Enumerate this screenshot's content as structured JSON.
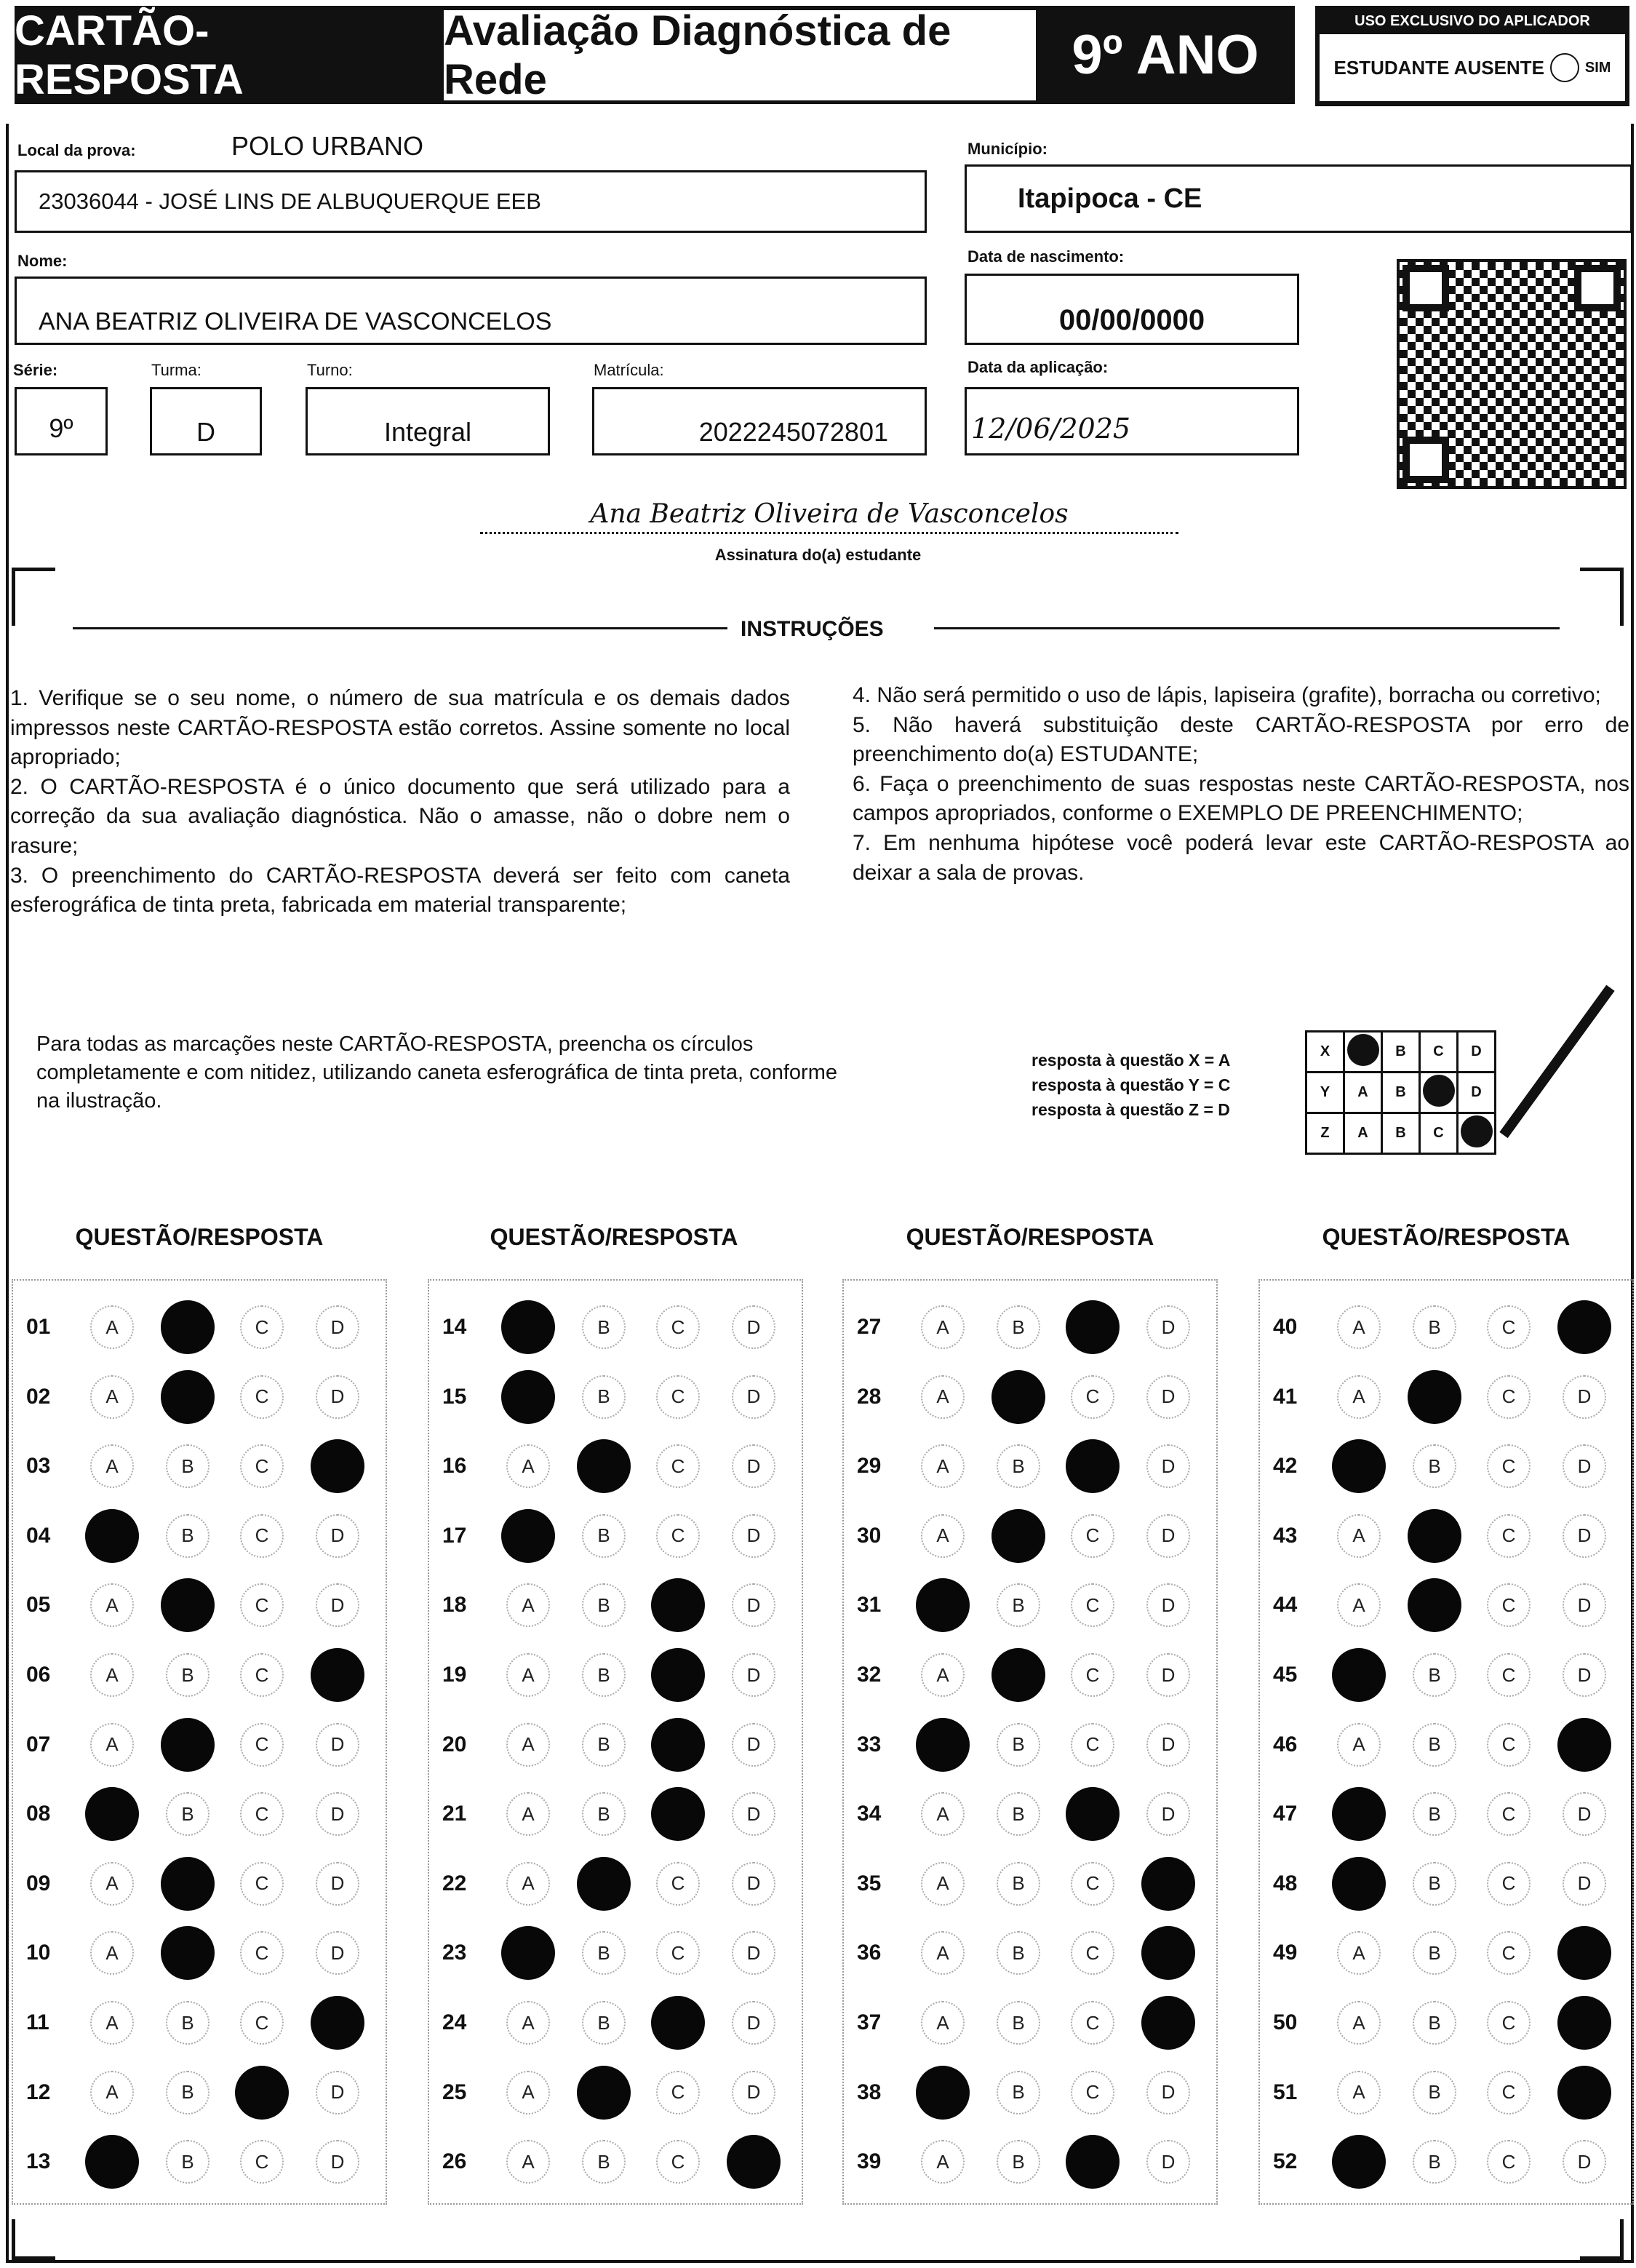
{
  "header": {
    "card_title": "CARTÃO-RESPOSTA",
    "exam_title": "Avaliação Diagnóstica de Rede",
    "grade": "9º ANO",
    "applicator_title": "USO EXCLUSIVO DO APLICADOR",
    "absent_label": "ESTUDANTE AUSENTE",
    "absent_option": "SIM"
  },
  "fields": {
    "local_label": "Local da prova:",
    "local_value": "POLO URBANO",
    "school": "23036044 - JOSÉ LINS DE ALBUQUERQUE EEB",
    "municipio_label": "Município:",
    "municipio": "Itapipoca - CE",
    "nome_label": "Nome:",
    "nome": "ANA BEATRIZ OLIVEIRA DE VASCONCELOS",
    "nasc_label": "Data de nascimento:",
    "nasc": "00/00/0000",
    "serie_label": "Série:",
    "serie": "9º",
    "turma_label": "Turma:",
    "turma": "D",
    "turno_label": "Turno:",
    "turno": "Integral",
    "matricula_label": "Matrícula:",
    "matricula": "2022245072801",
    "aplic_label": "Data da aplicação:",
    "aplic": "12/06/2025"
  },
  "signature": {
    "text": "Ana Beatriz Oliveira de Vasconcelos",
    "label": "Assinatura do(a) estudante"
  },
  "instructions": {
    "title": "INSTRUÇÕES",
    "left": "1. Verifique se o seu nome, o número de sua matrícula e os demais dados impressos neste CARTÃO-RESPOSTA estão corretos. Assine somente no local apropriado;\n2. O CARTÃO-RESPOSTA é o único documento que será utilizado para a correção da sua avaliação diagnóstica. Não o amasse, não o dobre nem o rasure;\n3. O preenchimento do CARTÃO-RESPOSTA deverá ser feito com caneta esferográfica de tinta preta, fabricada em material transparente;",
    "right": "4. Não será permitido o uso de lápis, lapiseira (grafite), borracha ou corretivo;\n5. Não haverá substituição deste CARTÃO-RESPOSTA por erro de preenchimento do(a) ESTUDANTE;\n6. Faça o preenchimento de suas respostas neste CARTÃO-RESPOSTA, nos campos apropriados, conforme o EXEMPLO DE PREENCHIMENTO;\n7. Em nenhuma hipótese você poderá levar este CARTÃO-RESPOSTA ao deixar a sala de provas."
  },
  "fill_note": "Para todas as marcações neste CARTÃO-RESPOSTA, preencha os círculos completamente e com nitidez, utilizando caneta esferográfica de tinta preta, conforme na ilustração.",
  "example": {
    "lines": [
      "resposta à questão X = A",
      "resposta à questão Y = C",
      "resposta à questão Z = D"
    ],
    "rows": [
      {
        "q": "X",
        "mark": "A"
      },
      {
        "q": "Y",
        "mark": "C"
      },
      {
        "q": "Z",
        "mark": "D"
      }
    ]
  },
  "options": [
    "A",
    "B",
    "C",
    "D"
  ],
  "column_header": "QUESTÃO/RESPOSTA",
  "answers": [
    [
      "01",
      "B"
    ],
    [
      "02",
      "B"
    ],
    [
      "03",
      "D"
    ],
    [
      "04",
      "A"
    ],
    [
      "05",
      "B"
    ],
    [
      "06",
      "D"
    ],
    [
      "07",
      "B"
    ],
    [
      "08",
      "A"
    ],
    [
      "09",
      "B"
    ],
    [
      "10",
      "B"
    ],
    [
      "11",
      "D"
    ],
    [
      "12",
      "C"
    ],
    [
      "13",
      "A"
    ],
    [
      "14",
      "A"
    ],
    [
      "15",
      "A"
    ],
    [
      "16",
      "B"
    ],
    [
      "17",
      "A"
    ],
    [
      "18",
      "C"
    ],
    [
      "19",
      "C"
    ],
    [
      "20",
      "C"
    ],
    [
      "21",
      "C"
    ],
    [
      "22",
      "B"
    ],
    [
      "23",
      "A"
    ],
    [
      "24",
      "C"
    ],
    [
      "25",
      "B"
    ],
    [
      "26",
      "D"
    ],
    [
      "27",
      "C"
    ],
    [
      "28",
      "B"
    ],
    [
      "29",
      "C"
    ],
    [
      "30",
      "B"
    ],
    [
      "31",
      "A"
    ],
    [
      "32",
      "B"
    ],
    [
      "33",
      "A"
    ],
    [
      "34",
      "C"
    ],
    [
      "35",
      "D"
    ],
    [
      "36",
      "D"
    ],
    [
      "37",
      "D"
    ],
    [
      "38",
      "A"
    ],
    [
      "39",
      "C"
    ],
    [
      "40",
      "D"
    ],
    [
      "41",
      "B"
    ],
    [
      "42",
      "A"
    ],
    [
      "43",
      "B"
    ],
    [
      "44",
      "B"
    ],
    [
      "45",
      "A"
    ],
    [
      "46",
      "D"
    ],
    [
      "47",
      "A"
    ],
    [
      "48",
      "A"
    ],
    [
      "49",
      "D"
    ],
    [
      "50",
      "D"
    ],
    [
      "51",
      "D"
    ],
    [
      "52",
      "A"
    ]
  ]
}
